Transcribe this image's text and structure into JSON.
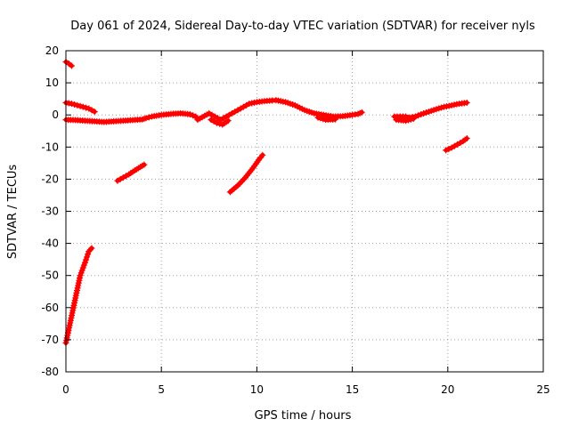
{
  "chart_data": {
    "type": "scatter",
    "title": "Day 061 of 2024, Sidereal Day-to-day VTEC variation (SDTVAR) for receiver nyls",
    "xlabel": "GPS time / hours",
    "ylabel": "SDTVAR / TECUs",
    "xlim": [
      0,
      25
    ],
    "ylim": [
      -80,
      20
    ],
    "xticks": [
      0,
      5,
      10,
      15,
      20,
      25
    ],
    "yticks": [
      -80,
      -70,
      -60,
      -50,
      -40,
      -30,
      -20,
      -10,
      0,
      10,
      20
    ],
    "grid": true,
    "marker": "plus",
    "color": "#ff0000",
    "series": [
      {
        "name": "early-top",
        "points": [
          [
            0.0,
            16.5
          ],
          [
            0.15,
            16.0
          ],
          [
            0.3,
            15.3
          ]
        ]
      },
      {
        "name": "steep-rise",
        "points": [
          [
            0.0,
            -71.0
          ],
          [
            0.25,
            -64.0
          ],
          [
            0.5,
            -57.0
          ],
          [
            0.75,
            -50.0
          ],
          [
            1.0,
            -46.0
          ],
          [
            1.2,
            -42.5
          ],
          [
            1.35,
            -41.5
          ]
        ]
      },
      {
        "name": "slope-1",
        "points": [
          [
            2.7,
            -20.5
          ],
          [
            3.0,
            -19.5
          ],
          [
            3.3,
            -18.5
          ],
          [
            3.6,
            -17.3
          ],
          [
            3.9,
            -16.2
          ],
          [
            4.1,
            -15.5
          ]
        ]
      },
      {
        "name": "slope-2",
        "points": [
          [
            8.6,
            -24.0
          ],
          [
            9.0,
            -22.0
          ],
          [
            9.4,
            -19.5
          ],
          [
            9.8,
            -16.5
          ],
          [
            10.1,
            -14.0
          ],
          [
            10.3,
            -12.5
          ]
        ]
      },
      {
        "name": "slope-3",
        "points": [
          [
            19.9,
            -11.0
          ],
          [
            20.2,
            -10.2
          ],
          [
            20.5,
            -9.2
          ],
          [
            20.8,
            -8.2
          ],
          [
            21.0,
            -7.3
          ]
        ]
      },
      {
        "name": "upper-band-start",
        "points": [
          [
            0.0,
            3.8
          ],
          [
            0.3,
            3.5
          ],
          [
            0.6,
            3.0
          ],
          [
            0.9,
            2.5
          ],
          [
            1.2,
            2.0
          ],
          [
            1.5,
            1.0
          ]
        ]
      },
      {
        "name": "main-band",
        "points": [
          [
            0.0,
            -1.5
          ],
          [
            0.5,
            -1.6
          ],
          [
            1.0,
            -1.8
          ],
          [
            1.5,
            -2.0
          ],
          [
            2.0,
            -2.2
          ],
          [
            2.5,
            -2.0
          ],
          [
            3.0,
            -1.8
          ],
          [
            3.5,
            -1.6
          ],
          [
            4.0,
            -1.4
          ],
          [
            4.2,
            -1.0
          ],
          [
            4.5,
            -0.5
          ],
          [
            5.0,
            0.0
          ],
          [
            5.5,
            0.3
          ],
          [
            6.0,
            0.5
          ],
          [
            6.5,
            0.2
          ],
          [
            6.8,
            -0.5
          ],
          [
            6.9,
            -1.5
          ],
          [
            7.5,
            0.5
          ],
          [
            7.8,
            -0.5
          ],
          [
            8.1,
            -1.5
          ],
          [
            8.4,
            -0.5
          ],
          [
            8.7,
            0.5
          ],
          [
            9.0,
            1.5
          ],
          [
            9.3,
            2.5
          ],
          [
            9.6,
            3.5
          ],
          [
            10.0,
            4.0
          ],
          [
            10.4,
            4.3
          ],
          [
            10.8,
            4.5
          ],
          [
            11.0,
            4.6
          ],
          [
            11.5,
            4.0
          ],
          [
            12.0,
            3.0
          ],
          [
            12.5,
            1.5
          ],
          [
            13.0,
            0.5
          ],
          [
            13.5,
            0.0
          ],
          [
            14.0,
            -0.5
          ],
          [
            14.5,
            -0.4
          ],
          [
            15.0,
            0.0
          ],
          [
            15.3,
            0.3
          ],
          [
            15.5,
            0.8
          ],
          [
            17.2,
            -0.5
          ],
          [
            17.5,
            -0.5
          ],
          [
            17.8,
            -0.5
          ],
          [
            18.0,
            -0.8
          ],
          [
            18.3,
            -0.5
          ],
          [
            18.6,
            0.2
          ],
          [
            19.0,
            1.0
          ],
          [
            19.4,
            1.8
          ],
          [
            19.8,
            2.5
          ],
          [
            20.2,
            3.0
          ],
          [
            20.6,
            3.5
          ],
          [
            21.0,
            3.8
          ]
        ]
      },
      {
        "name": "main-band-lower",
        "points": [
          [
            7.6,
            -1.5
          ],
          [
            7.9,
            -2.5
          ],
          [
            8.2,
            -3.0
          ],
          [
            8.5,
            -1.8
          ],
          [
            13.2,
            -0.8
          ],
          [
            13.6,
            -1.5
          ],
          [
            14.1,
            -1.4
          ],
          [
            17.3,
            -1.5
          ],
          [
            17.8,
            -1.8
          ],
          [
            18.2,
            -1.2
          ]
        ]
      }
    ]
  }
}
